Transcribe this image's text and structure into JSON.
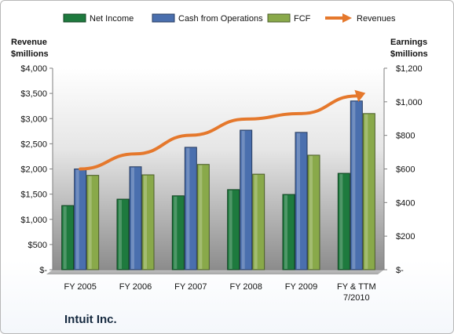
{
  "company": "Intuit Inc.",
  "chart_data": {
    "type": "bar",
    "categories": [
      "FY 2005",
      "FY 2006",
      "FY 2007",
      "FY 2008",
      "FY 2009",
      "FY & TTM 7/2010"
    ],
    "category_lines": [
      [
        "FY 2005"
      ],
      [
        "FY 2006"
      ],
      [
        "FY 2007"
      ],
      [
        "FY 2008"
      ],
      [
        "FY 2009"
      ],
      [
        "FY & TTM",
        "7/2010"
      ]
    ],
    "left_axis": {
      "label_lines": [
        "Revenue",
        "$millions"
      ],
      "ylim": [
        0,
        4000
      ],
      "ticks": [
        0,
        500,
        1000,
        1500,
        2000,
        2500,
        3000,
        3500,
        4000
      ],
      "tick_labels": [
        "$-",
        "$500",
        "$1,000",
        "$1,500",
        "$2,000",
        "$2,500",
        "$3,000",
        "$3,500",
        "$4,000"
      ]
    },
    "right_axis": {
      "label_lines": [
        "Earnings",
        "$millions"
      ],
      "ylim": [
        0,
        1200
      ],
      "ticks": [
        0,
        200,
        400,
        600,
        800,
        1000,
        1200
      ],
      "tick_labels": [
        "$-",
        "$200",
        "$400",
        "$600",
        "$800",
        "$1,000",
        "$1,200"
      ]
    },
    "series": [
      {
        "name": "Net Income",
        "kind": "bar",
        "axis": "right",
        "color": "#1e7a3e",
        "values": [
          382,
          420,
          440,
          477,
          448,
          574
        ]
      },
      {
        "name": "Cash from Operations",
        "kind": "bar",
        "axis": "right",
        "color": "#4a6fae",
        "values": [
          600,
          613,
          729,
          831,
          818,
          1005
        ]
      },
      {
        "name": "FCF",
        "kind": "bar",
        "axis": "right",
        "color": "#89a94a",
        "values": [
          562,
          565,
          627,
          569,
          682,
          930
        ]
      },
      {
        "name": "Revenues",
        "kind": "line",
        "axis": "left",
        "color": "#e5782c",
        "values": [
          2000,
          2300,
          2670,
          2990,
          3100,
          3450
        ]
      }
    ],
    "legend": {
      "position": "top"
    },
    "grid": false
  }
}
